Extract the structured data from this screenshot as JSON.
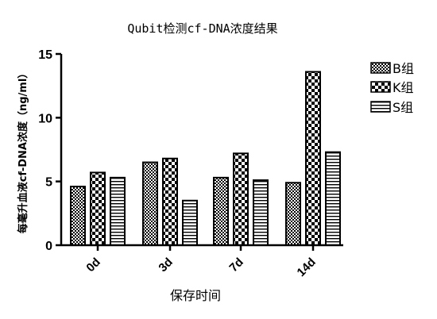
{
  "chart_data": {
    "type": "bar",
    "title": "Qubit检测cf-DNA浓度结果",
    "xlabel": "保存时间",
    "ylabel": "每毫升血液cf-DNA浓度（ng/ml）",
    "categories": [
      "0d",
      "3d",
      "7d",
      "14d"
    ],
    "series": [
      {
        "name": "B组",
        "values": [
          4.6,
          6.5,
          5.3,
          4.9
        ]
      },
      {
        "name": "K组",
        "values": [
          5.7,
          6.8,
          7.2,
          13.6
        ]
      },
      {
        "name": "S组",
        "values": [
          5.3,
          3.5,
          5.1,
          7.3
        ]
      }
    ],
    "ylim": [
      0,
      15
    ],
    "yticks": [
      0,
      5,
      10,
      15
    ],
    "grid": false,
    "legend": "right"
  }
}
